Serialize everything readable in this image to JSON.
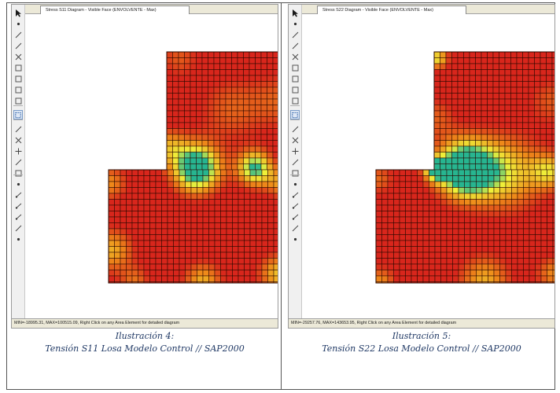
{
  "panels": [
    {
      "tab_title": "Stress S11 Diagram - Visible Face  (ENVOLVENTE - Max)",
      "status_text": "MIN=-18995.31, MAX=100515.09, Right Click on any Area Element for detailed diagram",
      "caption_title": "Ilustración 4:",
      "caption_description": "Tensión S11 Losa Modelo Control // SAP2000",
      "contour_colors": {
        "base": "#d8261c",
        "mid": "#ee8a1a",
        "high": "#eff23a",
        "peak": "#27b590",
        "mesh_line": "#2a0800"
      }
    },
    {
      "tab_title": "Stress S22 Diagram - Visible Face  (ENVOLVENTE - Max)",
      "status_text": "MIN=-29257.76, MAX=143653.95, Right Click on any Area Element for detailed diagram",
      "caption_title": "Ilustración 5:",
      "caption_description": "Tensión S22 Losa Modelo Control // SAP2000",
      "contour_colors": {
        "base": "#d8261c",
        "mid": "#ee8a1a",
        "high": "#eff23a",
        "peak": "#27b590",
        "mesh_line": "#2a0800"
      }
    }
  ],
  "toolbar_tools": [
    {
      "icon": "pointer-icon",
      "glyph": "cursor",
      "active": false
    },
    {
      "icon": "draw-point-icon",
      "glyph": "point",
      "active": false
    },
    {
      "icon": "draw-frame-icon",
      "glyph": "line",
      "active": false
    },
    {
      "icon": "draw-quick-frame-icon",
      "glyph": "line",
      "active": false
    },
    {
      "icon": "draw-cable-icon",
      "glyph": "cross",
      "active": false
    },
    {
      "icon": "draw-poly-area-icon",
      "glyph": "box",
      "active": false
    },
    {
      "icon": "draw-rect-area-icon",
      "glyph": "box",
      "active": false
    },
    {
      "icon": "draw-quick-area-icon",
      "glyph": "box",
      "active": false
    },
    {
      "icon": "draw-solid-icon",
      "glyph": "box",
      "active": false
    },
    {
      "icon": "select-all-icon",
      "glyph": "dashbox",
      "active": true
    },
    {
      "icon": "draw-link-icon",
      "glyph": "line",
      "active": false
    },
    {
      "icon": "draw-brace-icon",
      "glyph": "cross",
      "active": false
    },
    {
      "icon": "draw-section-cut-icon",
      "glyph": "plus",
      "active": false
    },
    {
      "icon": "draw-dimension-icon",
      "glyph": "line",
      "active": false
    },
    {
      "icon": "draw-tendon-icon",
      "glyph": "box",
      "active": false
    },
    {
      "icon": "snap-point-icon",
      "glyph": "point",
      "active": false
    },
    {
      "icon": "snap-midpoint-icon",
      "glyph": "snap",
      "active": false
    },
    {
      "icon": "snap-intersection-icon",
      "glyph": "snap",
      "active": false
    },
    {
      "icon": "snap-perpendicular-icon",
      "glyph": "snap",
      "active": false
    },
    {
      "icon": "snap-line-icon",
      "glyph": "line",
      "active": false
    },
    {
      "icon": "snap-fine-grid-icon",
      "glyph": "point",
      "active": false
    }
  ]
}
